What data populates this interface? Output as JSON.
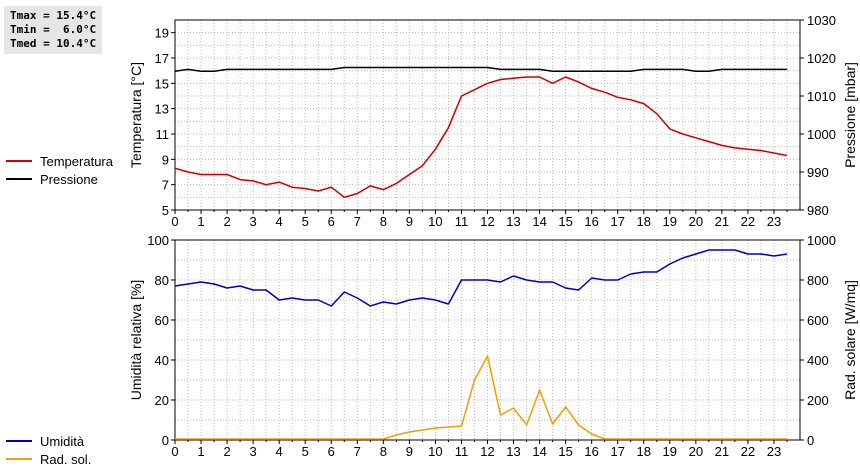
{
  "stats": {
    "tmax": "Tmax = 15.4°C",
    "tmin": "Tmin =  6.0°C",
    "tmed": "Tmed = 10.4°C"
  },
  "colors": {
    "temperature": "#cc0000",
    "pressure": "#000000",
    "humidity": "#0000bb",
    "solar": "#f0a000",
    "grid": "#bbbbbb"
  },
  "chart_data": [
    {
      "type": "line",
      "x_ticks": [
        "0",
        "1",
        "2",
        "3",
        "4",
        "5",
        "6",
        "7",
        "8",
        "9",
        "10",
        "11",
        "12",
        "13",
        "14",
        "15",
        "16",
        "17",
        "18",
        "19",
        "20",
        "21",
        "22",
        "23"
      ],
      "xlim": [
        0,
        24
      ],
      "ylabel": "Temperatura [°C]",
      "ylim": [
        5,
        20
      ],
      "yticks": [
        "5",
        "7",
        "9",
        "11",
        "13",
        "15",
        "17",
        "19"
      ],
      "ylabel_right": "Pressione [mbar]",
      "ylim_right": [
        980,
        1030
      ],
      "yticks_right": [
        "980",
        "990",
        "1000",
        "1010",
        "1020",
        "1030"
      ],
      "grid": true,
      "legend_position": "left",
      "series": [
        {
          "name": "Temperatura",
          "axis": "left",
          "x": [
            0,
            0.5,
            1,
            1.5,
            2,
            2.5,
            3,
            3.5,
            4,
            4.5,
            5,
            5.5,
            6,
            6.5,
            7,
            7.5,
            8,
            8.5,
            9,
            9.5,
            10,
            10.5,
            11,
            11.5,
            12,
            12.5,
            13,
            13.5,
            14,
            14.5,
            15,
            15.5,
            16,
            16.5,
            17,
            17.5,
            18,
            18.5,
            19,
            19.5,
            20,
            20.5,
            21,
            21.5,
            22,
            22.5,
            23,
            23.5
          ],
          "y": [
            8.3,
            8.0,
            7.8,
            7.8,
            7.8,
            7.4,
            7.3,
            7.0,
            7.2,
            6.8,
            6.7,
            6.5,
            6.8,
            6.0,
            6.3,
            6.9,
            6.6,
            7.1,
            7.8,
            8.5,
            9.8,
            11.5,
            14.0,
            14.5,
            15.0,
            15.3,
            15.4,
            15.5,
            15.5,
            15.0,
            15.5,
            15.1,
            14.6,
            14.3,
            13.9,
            13.7,
            13.4,
            12.6,
            11.4,
            11.0,
            10.7,
            10.4,
            10.1,
            9.9,
            9.8,
            9.7,
            9.5,
            9.3
          ]
        },
        {
          "name": "Pressione",
          "axis": "right",
          "x": [
            0,
            0.5,
            1,
            1.5,
            2,
            2.5,
            3,
            3.5,
            4,
            4.5,
            5,
            5.5,
            6,
            6.5,
            7,
            7.5,
            8,
            8.5,
            9,
            9.5,
            10,
            10.5,
            11,
            11.5,
            12,
            12.5,
            13,
            13.5,
            14,
            14.5,
            15,
            15.5,
            16,
            16.5,
            17,
            17.5,
            18,
            18.5,
            19,
            19.5,
            20,
            20.5,
            21,
            21.5,
            22,
            22.5,
            23,
            23.5
          ],
          "y": [
            1016.5,
            1017,
            1016.5,
            1016.5,
            1017,
            1017,
            1017,
            1017,
            1017,
            1017,
            1017,
            1017,
            1017,
            1017.5,
            1017.5,
            1017.5,
            1017.5,
            1017.5,
            1017.5,
            1017.5,
            1017.5,
            1017.5,
            1017.5,
            1017.5,
            1017.5,
            1017,
            1017,
            1017,
            1017,
            1016.5,
            1016.5,
            1016.5,
            1016.5,
            1016.5,
            1016.5,
            1016.5,
            1017,
            1017,
            1017,
            1017,
            1016.5,
            1016.5,
            1017,
            1017,
            1017,
            1017,
            1017,
            1017
          ]
        }
      ]
    },
    {
      "type": "line",
      "x_ticks": [
        "0",
        "1",
        "2",
        "3",
        "4",
        "5",
        "6",
        "7",
        "8",
        "9",
        "10",
        "11",
        "12",
        "13",
        "14",
        "15",
        "16",
        "17",
        "18",
        "19",
        "20",
        "21",
        "22",
        "23"
      ],
      "xlim": [
        0,
        24
      ],
      "ylabel": "Umidità relativa [%]",
      "ylim": [
        0,
        100
      ],
      "yticks": [
        "0",
        "20",
        "40",
        "60",
        "80",
        "100"
      ],
      "ylabel_right": "Rad. solare [W/mq]",
      "ylim_right": [
        0,
        1000
      ],
      "yticks_right": [
        "0",
        "200",
        "400",
        "600",
        "800",
        "1000"
      ],
      "grid": true,
      "legend_position": "left",
      "series": [
        {
          "name": "Umidità",
          "axis": "left",
          "x": [
            0,
            0.5,
            1,
            1.5,
            2,
            2.5,
            3,
            3.5,
            4,
            4.5,
            5,
            5.5,
            6,
            6.5,
            7,
            7.5,
            8,
            8.5,
            9,
            9.5,
            10,
            10.5,
            11,
            11.5,
            12,
            12.5,
            13,
            13.5,
            14,
            14.5,
            15,
            15.5,
            16,
            16.5,
            17,
            17.5,
            18,
            18.5,
            19,
            19.5,
            20,
            20.5,
            21,
            21.5,
            22,
            22.5,
            23,
            23.5
          ],
          "y": [
            77,
            78,
            79,
            78,
            76,
            77,
            75,
            75,
            70,
            71,
            70,
            70,
            67,
            74,
            71,
            67,
            69,
            68,
            70,
            71,
            70,
            68,
            80,
            80,
            80,
            79,
            82,
            80,
            79,
            79,
            76,
            75,
            81,
            80,
            80,
            83,
            84,
            84,
            88,
            91,
            93,
            95,
            95,
            95,
            93,
            93,
            92,
            93
          ]
        },
        {
          "name": "Rad. sol.",
          "axis": "right",
          "x": [
            0,
            0.5,
            1,
            1.5,
            2,
            2.5,
            3,
            3.5,
            4,
            4.5,
            5,
            5.5,
            6,
            6.5,
            7,
            7.5,
            8,
            8.5,
            9,
            9.5,
            10,
            10.5,
            11,
            11.5,
            12,
            12.5,
            13,
            13.5,
            14,
            14.5,
            15,
            15.5,
            16,
            16.5,
            17,
            17.5,
            18,
            18.5,
            19,
            19.5,
            20,
            20.5,
            21,
            21.5,
            22,
            22.5,
            23,
            23.5
          ],
          "y": [
            5,
            5,
            5,
            5,
            5,
            5,
            5,
            5,
            5,
            5,
            5,
            5,
            5,
            5,
            5,
            5,
            5,
            25,
            40,
            50,
            60,
            65,
            70,
            300,
            420,
            125,
            160,
            75,
            250,
            80,
            165,
            75,
            30,
            5,
            5,
            5,
            5,
            5,
            5,
            5,
            5,
            5,
            5,
            5,
            5,
            5,
            5,
            5
          ]
        }
      ]
    }
  ]
}
